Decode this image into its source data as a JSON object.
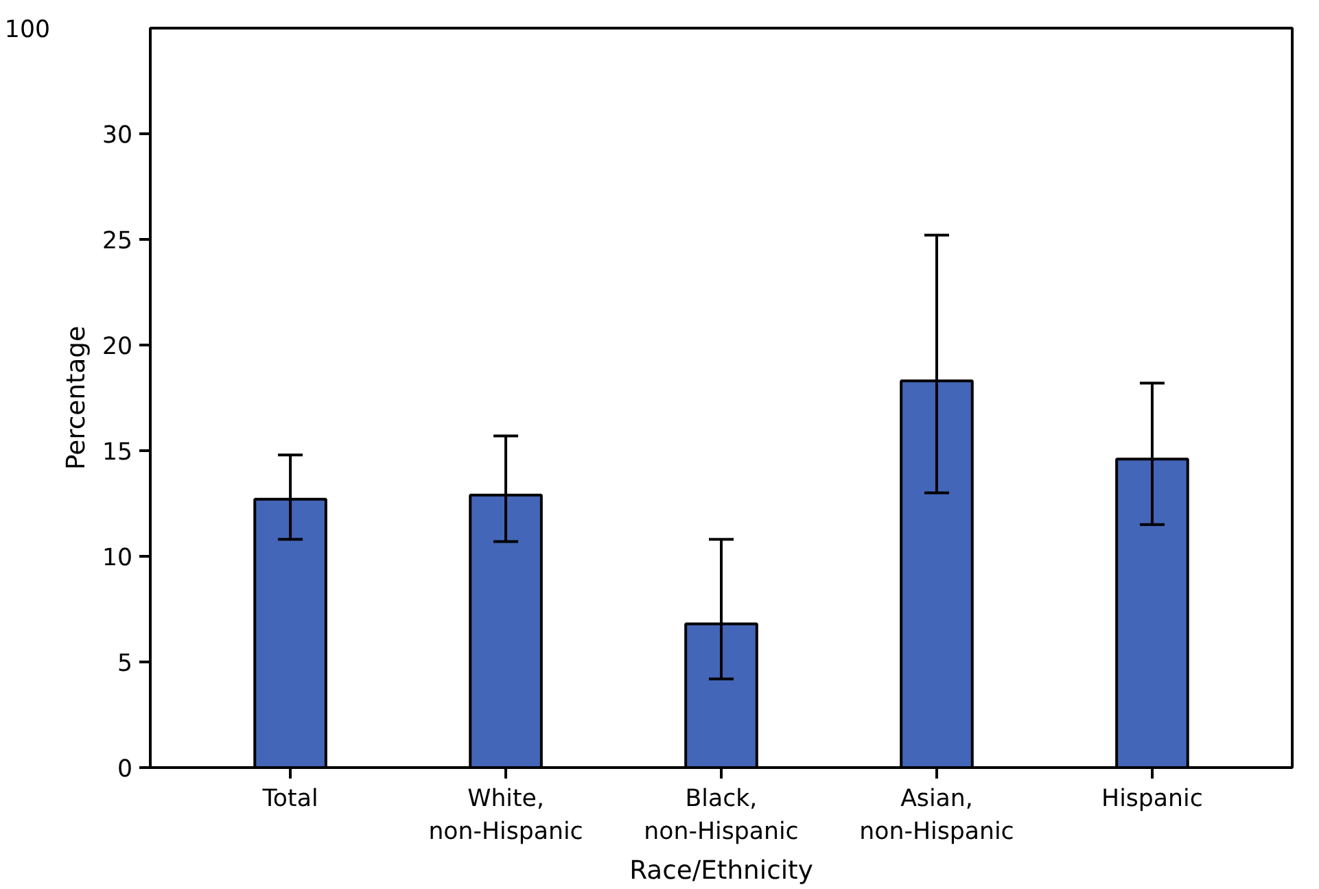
{
  "chart_data": {
    "type": "bar",
    "xlabel": "Race/Ethnicity",
    "ylabel": "Percentage",
    "categories": [
      "Total",
      "White,\nnon-Hispanic",
      "Black,\nnon-Hispanic",
      "Asian,\nnon-Hispanic",
      "Hispanic"
    ],
    "values": [
      12.7,
      12.9,
      6.8,
      18.3,
      14.6
    ],
    "errors": [
      [
        10.8,
        14.8
      ],
      [
        10.7,
        15.7
      ],
      [
        4.2,
        10.8
      ],
      [
        13.0,
        25.2
      ],
      [
        11.5,
        18.2
      ]
    ],
    "color": "#4466b8",
    "ylim": [
      0,
      35
    ],
    "yticks": [
      0,
      5,
      10,
      15,
      20,
      25,
      30
    ],
    "annotations": [
      "100"
    ],
    "grid": false
  }
}
